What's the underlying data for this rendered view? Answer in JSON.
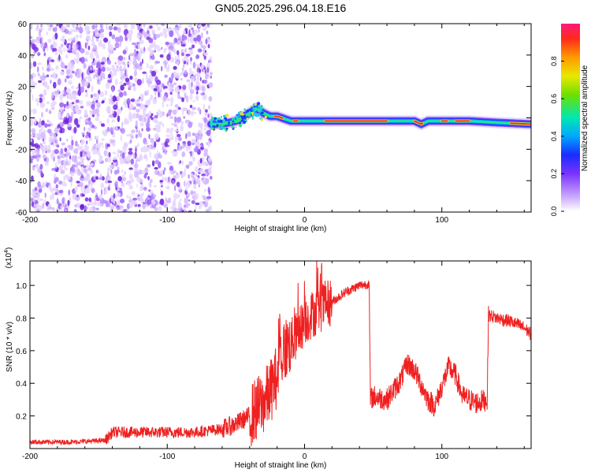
{
  "title": "GN05.2025.296.04.18.E16",
  "chart_data": [
    {
      "type": "heatmap",
      "xlabel": "Height of straight line (km)",
      "ylabel": "Frequency (Hz)",
      "xlim": [
        -200,
        165
      ],
      "ylim": [
        -60,
        60
      ],
      "x_ticks": [
        -200,
        -100,
        0,
        100
      ],
      "x_tick_labels": [
        "-200",
        "-100",
        "0",
        "100"
      ],
      "y_ticks": [
        -60,
        -40,
        -20,
        0,
        20,
        40,
        60
      ],
      "y_tick_labels": [
        "-60",
        "-40",
        "-20",
        "0",
        "20",
        "40",
        "60"
      ],
      "noise_region_x": [
        -200,
        -68
      ],
      "signal_track": {
        "x": [
          -68,
          -60,
          -50,
          -42,
          -35,
          -30,
          -25,
          -20,
          -10,
          0,
          20,
          40,
          60,
          80,
          85,
          90,
          100,
          110,
          120,
          140,
          165
        ],
        "y": [
          -4,
          -4,
          -2,
          2,
          6,
          3,
          1,
          1,
          -2,
          -2,
          -2,
          -2,
          -2,
          -2,
          -4,
          -2,
          -2,
          -2,
          -2,
          -3,
          -4
        ]
      },
      "colorbar": {
        "label": "Normalized spectral amplitude",
        "ticks": [
          0.0,
          0.2,
          0.4,
          0.6,
          0.8
        ],
        "tick_labels": [
          "0.0",
          "0.2",
          "0.4",
          "0.6",
          "0.8"
        ],
        "range": [
          0,
          1
        ]
      }
    },
    {
      "type": "line",
      "xlabel": "Height of straight line (km)",
      "ylabel": "SNR (10 * v/v)",
      "exponent_label": "(x10",
      "exponent_power": "4",
      "exponent_close": ")",
      "xlim": [
        -200,
        165
      ],
      "ylim": [
        0,
        1.15
      ],
      "x_ticks": [
        -200,
        -100,
        0,
        100
      ],
      "x_tick_labels": [
        "-200",
        "-100",
        "0",
        "100"
      ],
      "y_ticks": [
        0.2,
        0.4,
        0.6,
        0.8,
        1.0
      ],
      "y_tick_labels": [
        "0.2",
        "0.4",
        "0.6",
        "0.8",
        "1.0"
      ],
      "color": "#ef2020",
      "series": [
        {
          "x": [
            -200,
            -170,
            -145,
            -140,
            -120,
            -100,
            -80,
            -60,
            -50,
            -40,
            -30,
            -25,
            -20,
            -18,
            -15,
            -10,
            -5,
            0,
            5,
            10,
            15,
            20,
            30,
            40,
            47,
            48,
            50,
            60,
            70,
            75,
            80,
            90,
            95,
            100,
            105,
            110,
            115,
            120,
            125,
            133,
            134,
            140,
            150,
            160,
            165
          ],
          "y": [
            0.04,
            0.04,
            0.05,
            0.1,
            0.1,
            0.1,
            0.1,
            0.12,
            0.15,
            0.2,
            0.28,
            0.35,
            0.45,
            0.55,
            0.6,
            0.65,
            0.7,
            0.78,
            0.82,
            0.85,
            0.88,
            0.9,
            0.96,
            1.0,
            1.01,
            0.3,
            0.32,
            0.3,
            0.42,
            0.52,
            0.48,
            0.3,
            0.26,
            0.38,
            0.5,
            0.45,
            0.32,
            0.3,
            0.28,
            0.3,
            0.82,
            0.8,
            0.78,
            0.74,
            0.7
          ]
        }
      ]
    }
  ]
}
